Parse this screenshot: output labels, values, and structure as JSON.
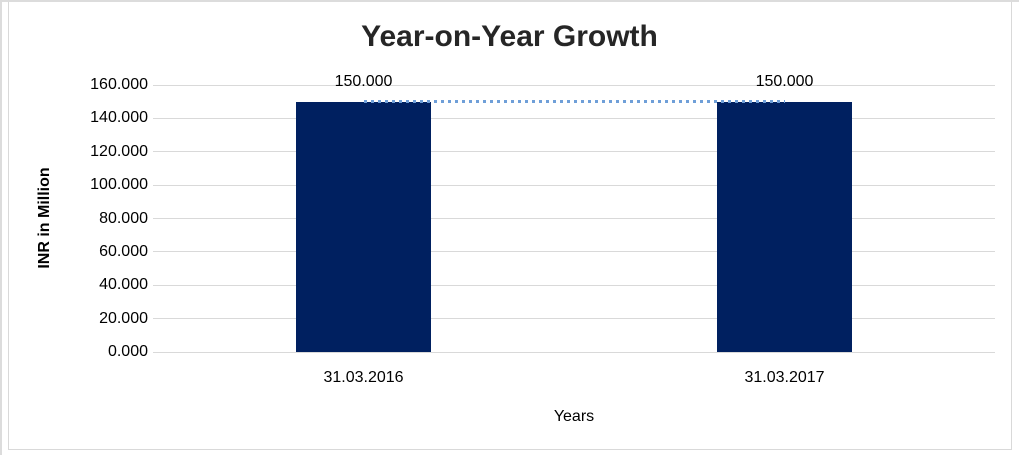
{
  "chart_data": {
    "type": "bar",
    "title": "Year-on-Year Growth",
    "categories": [
      "31.03.2016",
      "31.03.2017"
    ],
    "series": [
      {
        "name": "INR in Million",
        "kind": "column",
        "color": "#002060",
        "values": [
          150,
          150
        ],
        "data_labels": [
          "150.000",
          "150.000"
        ]
      },
      {
        "name": "Trend",
        "kind": "dotted-line",
        "color": "#6f9fd8",
        "values": [
          150,
          150
        ]
      }
    ],
    "xlabel": "Years",
    "ylabel": "INR in Million",
    "ylim": [
      0,
      160
    ],
    "ytick_step": 20,
    "ytick_labels": [
      "0.000",
      "20.000",
      "40.000",
      "60.000",
      "80.000",
      "100.000",
      "120.000",
      "140.000",
      "160.000"
    ],
    "grid": "horizontal",
    "gridline_color": "#d9d9d9",
    "legend": "none",
    "background": "#ffffff"
  }
}
